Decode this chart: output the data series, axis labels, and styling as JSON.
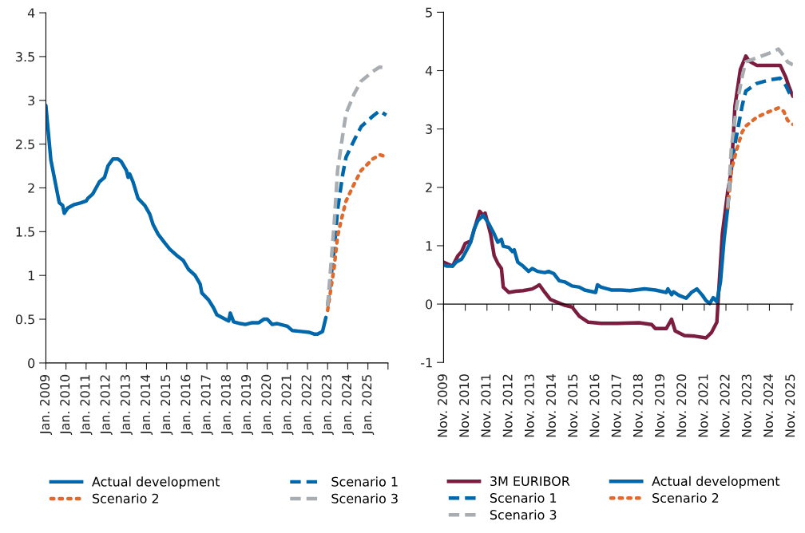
{
  "chart_data": [
    {
      "type": "line",
      "legend": "bottom",
      "xlim": [
        "2009-01",
        "2026-01"
      ],
      "ylim": [
        0,
        4
      ],
      "yticks": [
        0,
        0.5,
        1,
        1.5,
        2,
        2.5,
        3,
        3.5,
        4
      ],
      "xticks": [
        {
          "value": "2009-01",
          "label": "Jan. 2009"
        },
        {
          "value": "2010-01",
          "label": "Jan. 2010"
        },
        {
          "value": "2011-01",
          "label": "Jan. 2011"
        },
        {
          "value": "2012-01",
          "label": "Jan. 2012"
        },
        {
          "value": "2013-01",
          "label": "Jan. 2013"
        },
        {
          "value": "2014-01",
          "label": "Jan. 2014"
        },
        {
          "value": "2015-01",
          "label": "Jan. 2015"
        },
        {
          "value": "2016-01",
          "label": "Jan. 2016"
        },
        {
          "value": "2017-01",
          "label": "Jan. 2017"
        },
        {
          "value": "2018-01",
          "label": "Jan. 2018"
        },
        {
          "value": "2019-01",
          "label": "Jan. 2019"
        },
        {
          "value": "2020-01",
          "label": "Jan. 2020"
        },
        {
          "value": "2021-01",
          "label": "Jan. 2021"
        },
        {
          "value": "2022-01",
          "label": "Jan. 2022"
        },
        {
          "value": "2023-01",
          "label": "Jan. 2023"
        },
        {
          "value": "2024-01",
          "label": "Jan. 2024"
        },
        {
          "value": "2025-01",
          "label": "Jan. 2025"
        },
        {
          "value": "2026-01",
          "label": null
        }
      ],
      "series": [
        {
          "name": "Actual development",
          "color": "#0067ab",
          "line_style": "solid",
          "x": [
            "2009-01",
            "2009-04",
            "2009-09",
            "2009-11",
            "2009-12",
            "2010-02",
            "2010-06",
            "2010-10",
            "2011-01",
            "2011-02",
            "2011-05",
            "2011-07",
            "2011-09",
            "2011-12",
            "2012-02",
            "2012-05",
            "2012-08",
            "2012-10",
            "2013-01",
            "2013-02",
            "2013-03",
            "2013-05",
            "2013-08",
            "2013-12",
            "2014-03",
            "2014-05",
            "2014-08",
            "2014-12",
            "2015-03",
            "2015-07",
            "2015-11",
            "2016-02",
            "2016-06",
            "2016-09",
            "2016-10",
            "2017-02",
            "2017-05",
            "2017-07",
            "2017-11",
            "2018-02",
            "2018-03",
            "2018-05",
            "2018-09",
            "2018-12",
            "2019-04",
            "2019-08",
            "2019-11",
            "2020-01",
            "2020-04",
            "2020-07",
            "2021-01",
            "2021-04",
            "2021-09",
            "2022-02",
            "2022-05",
            "2022-07",
            "2022-10",
            "2022-12"
          ],
          "values": [
            2.94,
            2.32,
            1.83,
            1.8,
            1.71,
            1.77,
            1.81,
            1.83,
            1.85,
            1.88,
            1.93,
            2.0,
            2.07,
            2.12,
            2.25,
            2.33,
            2.33,
            2.3,
            2.2,
            2.12,
            2.16,
            2.07,
            1.88,
            1.8,
            1.7,
            1.58,
            1.47,
            1.37,
            1.3,
            1.23,
            1.17,
            1.07,
            1.0,
            0.9,
            0.8,
            0.72,
            0.63,
            0.55,
            0.51,
            0.48,
            0.57,
            0.47,
            0.45,
            0.44,
            0.46,
            0.46,
            0.5,
            0.5,
            0.44,
            0.45,
            0.42,
            0.37,
            0.36,
            0.35,
            0.33,
            0.33,
            0.36,
            0.52
          ]
        },
        {
          "name": "Scenario 1",
          "color": "#0067ab",
          "line_style": "dashed",
          "x": [
            "2023-01",
            "2023-05",
            "2023-07",
            "2023-10",
            "2023-12",
            "2024-05",
            "2024-09",
            "2025-04",
            "2025-08",
            "2025-12"
          ],
          "values": [
            0.65,
            1.3,
            1.75,
            2.15,
            2.35,
            2.55,
            2.7,
            2.82,
            2.88,
            2.83
          ]
        },
        {
          "name": "Scenario 2",
          "color": "#e06a2c",
          "line_style": "dotted",
          "x": [
            "2023-01",
            "2023-05",
            "2023-07",
            "2023-10",
            "2023-12",
            "2024-05",
            "2024-09",
            "2025-04",
            "2025-08",
            "2025-11"
          ],
          "values": [
            0.6,
            1.1,
            1.45,
            1.7,
            1.85,
            2.05,
            2.2,
            2.33,
            2.38,
            2.36
          ]
        },
        {
          "name": "Scenario 3",
          "color": "#a8adb2",
          "line_style": "dashed",
          "x": [
            "2023-01",
            "2023-05",
            "2023-07",
            "2023-10",
            "2023-12",
            "2024-05",
            "2024-09",
            "2025-04",
            "2025-08",
            "2025-11"
          ],
          "values": [
            0.65,
            1.6,
            2.2,
            2.6,
            2.85,
            3.08,
            3.22,
            3.33,
            3.38,
            3.37
          ]
        }
      ]
    },
    {
      "type": "line",
      "legend": "bottom",
      "xlim": [
        "2009-11",
        "2025-12"
      ],
      "ylim": [
        -1,
        5
      ],
      "yticks": [
        -1,
        0,
        1,
        2,
        3,
        4,
        5
      ],
      "xticks": [
        {
          "value": "2009-11",
          "label": "Nov. 2009"
        },
        {
          "value": "2010-11",
          "label": "Nov. 2010"
        },
        {
          "value": "2011-11",
          "label": "Nov. 2011"
        },
        {
          "value": "2012-11",
          "label": "Nov. 2012"
        },
        {
          "value": "2013-11",
          "label": "Nov. 2013"
        },
        {
          "value": "2014-11",
          "label": "Nov. 2014"
        },
        {
          "value": "2015-11",
          "label": "Nov. 2015"
        },
        {
          "value": "2016-11",
          "label": "Nov. 2016"
        },
        {
          "value": "2017-11",
          "label": "Nov. 2017"
        },
        {
          "value": "2018-11",
          "label": "Nov. 2018"
        },
        {
          "value": "2019-11",
          "label": "Nov. 2019"
        },
        {
          "value": "2020-11",
          "label": "Nov. 2020"
        },
        {
          "value": "2021-11",
          "label": "Nov. 2021"
        },
        {
          "value": "2022-11",
          "label": "Nov. 2022"
        },
        {
          "value": "2023-11",
          "label": "Nov. 2023"
        },
        {
          "value": "2024-11",
          "label": "Nov. 2024"
        },
        {
          "value": "2025-11",
          "label": "Nov. 2025"
        }
      ],
      "series": [
        {
          "name": "3M EURIBOR",
          "color": "#7b1d3f",
          "line_style": "solid",
          "x": [
            "2009-11",
            "2010-04",
            "2010-07",
            "2010-09",
            "2010-11",
            "2011-02",
            "2011-05",
            "2011-07",
            "2011-09",
            "2011-10",
            "2012-01",
            "2012-03",
            "2012-05",
            "2012-07",
            "2012-08",
            "2012-11",
            "2013-03",
            "2013-07",
            "2013-12",
            "2014-03",
            "2014-04",
            "2014-07",
            "2014-10",
            "2015-01",
            "2015-06",
            "2015-10",
            "2016-02",
            "2016-07",
            "2017-02",
            "2017-11",
            "2018-11",
            "2019-06",
            "2019-08",
            "2020-02",
            "2020-05",
            "2020-07",
            "2020-12",
            "2021-06",
            "2021-12",
            "2022-03",
            "2022-06",
            "2022-07",
            "2022-09",
            "2022-12",
            "2023-02",
            "2023-04",
            "2023-07",
            "2023-10",
            "2023-12",
            "2024-04",
            "2024-10",
            "2025-05",
            "2025-08",
            "2025-10",
            "2025-12"
          ],
          "values": [
            0.72,
            0.65,
            0.83,
            0.9,
            1.04,
            1.08,
            1.38,
            1.59,
            1.52,
            1.56,
            1.2,
            0.83,
            0.7,
            0.61,
            0.29,
            0.2,
            0.22,
            0.23,
            0.26,
            0.31,
            0.33,
            0.2,
            0.08,
            0.04,
            -0.02,
            -0.05,
            -0.21,
            -0.31,
            -0.33,
            -0.33,
            -0.32,
            -0.35,
            -0.42,
            -0.42,
            -0.26,
            -0.46,
            -0.54,
            -0.55,
            -0.58,
            -0.49,
            -0.31,
            0.2,
            1.2,
            1.93,
            2.29,
            3.39,
            4.02,
            4.25,
            4.16,
            4.09,
            4.09,
            4.09,
            3.89,
            3.71,
            3.56
          ]
        },
        {
          "name": "Actual development",
          "color": "#0067ab",
          "line_style": "solid",
          "x": [
            "2009-11",
            "2010-01",
            "2010-04",
            "2010-06",
            "2010-09",
            "2010-11",
            "2011-02",
            "2011-04",
            "2011-06",
            "2011-09",
            "2011-12",
            "2012-03",
            "2012-05",
            "2012-07",
            "2012-08",
            "2012-11",
            "2013-01",
            "2013-02",
            "2013-04",
            "2013-07",
            "2013-10",
            "2013-12",
            "2014-03",
            "2014-07",
            "2014-09",
            "2014-12",
            "2015-03",
            "2015-06",
            "2015-10",
            "2016-02",
            "2016-05",
            "2016-11",
            "2016-12",
            "2017-02",
            "2017-08",
            "2018-01",
            "2018-06",
            "2019-02",
            "2019-08",
            "2020-02",
            "2020-03",
            "2020-05",
            "2020-06",
            "2020-09",
            "2021-01",
            "2021-04",
            "2021-07",
            "2021-10",
            "2021-12",
            "2022-02",
            "2022-04",
            "2022-06",
            "2022-08",
            "2022-10",
            "2022-12"
          ],
          "values": [
            0.67,
            0.65,
            0.65,
            0.72,
            0.77,
            0.88,
            1.06,
            1.29,
            1.43,
            1.52,
            1.38,
            1.2,
            1.06,
            1.11,
            0.99,
            0.97,
            0.9,
            0.93,
            0.72,
            0.65,
            0.56,
            0.61,
            0.56,
            0.54,
            0.56,
            0.52,
            0.4,
            0.38,
            0.31,
            0.29,
            0.24,
            0.2,
            0.33,
            0.29,
            0.24,
            0.24,
            0.23,
            0.26,
            0.24,
            0.2,
            0.26,
            0.16,
            0.21,
            0.15,
            0.1,
            0.2,
            0.26,
            0.15,
            0.06,
            0.01,
            0.11,
            0.04,
            0.38,
            1.11,
            1.65
          ]
        },
        {
          "name": "Scenario 1",
          "color": "#0067ab",
          "line_style": "dashed",
          "x": [
            "2022-12",
            "2023-02",
            "2023-05",
            "2023-08",
            "2023-10",
            "2024-04",
            "2024-11",
            "2025-05",
            "2025-08",
            "2025-10",
            "2025-12"
          ],
          "values": [
            1.65,
            2.4,
            2.9,
            3.4,
            3.65,
            3.78,
            3.84,
            3.87,
            3.75,
            3.62,
            3.56
          ]
        },
        {
          "name": "Scenario 2",
          "color": "#e06a2c",
          "line_style": "dotted",
          "x": [
            "2022-12",
            "2023-02",
            "2023-05",
            "2023-08",
            "2023-10",
            "2024-04",
            "2024-11",
            "2025-04",
            "2025-07",
            "2025-09",
            "2025-12"
          ],
          "values": [
            1.65,
            2.3,
            2.65,
            2.95,
            3.05,
            3.2,
            3.3,
            3.36,
            3.3,
            3.15,
            3.08
          ]
        },
        {
          "name": "Scenario 3",
          "color": "#a8adb2",
          "line_style": "dashed",
          "x": [
            "2022-12",
            "2023-02",
            "2023-05",
            "2023-08",
            "2023-10",
            "2024-04",
            "2024-11",
            "2025-04",
            "2025-07",
            "2025-09",
            "2025-12"
          ],
          "values": [
            1.65,
            2.7,
            3.4,
            3.9,
            4.15,
            4.22,
            4.3,
            4.37,
            4.25,
            4.15,
            4.1
          ]
        }
      ]
    }
  ]
}
